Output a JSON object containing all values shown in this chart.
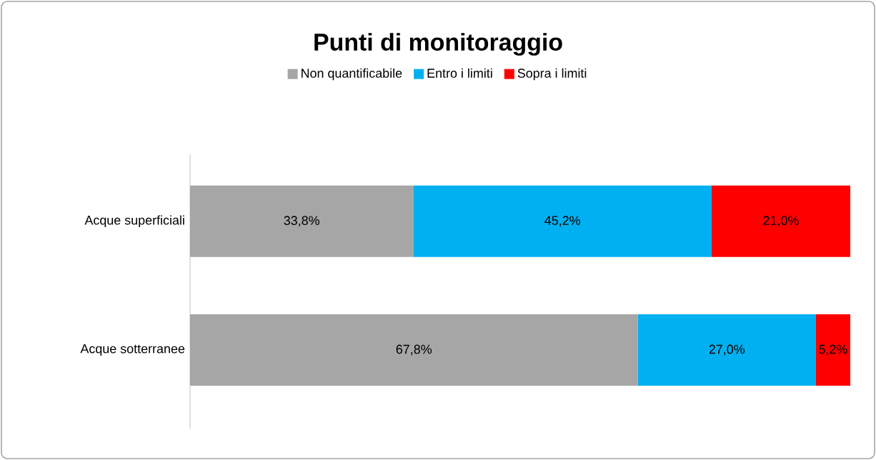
{
  "chart_data": {
    "type": "bar",
    "title": "Punti di monitoraggio",
    "orientation": "horizontal",
    "stacked": true,
    "legend": "top",
    "categories": [
      "Acque superficiali",
      "Acque sotterranee"
    ],
    "series": [
      {
        "name": "Non quantificabile",
        "color": "#a6a6a6",
        "values": [
          33.8,
          67.8
        ],
        "value_labels": [
          "33,8%",
          "67,8%"
        ]
      },
      {
        "name": "Entro i limiti",
        "color": "#00b0f0",
        "values": [
          45.2,
          27.0
        ],
        "value_labels": [
          "45,2%",
          "27,0%"
        ]
      },
      {
        "name": "Sopra i limiti",
        "color": "#ff0000",
        "values": [
          21.0,
          5.2
        ],
        "value_labels": [
          "21,0%",
          "5,2%"
        ]
      }
    ]
  }
}
